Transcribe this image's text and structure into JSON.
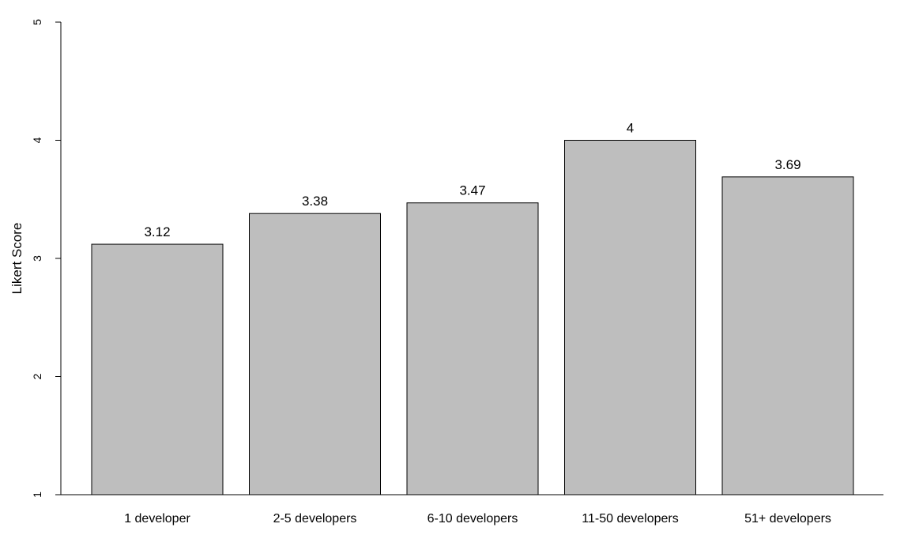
{
  "chart_data": {
    "type": "bar",
    "categories": [
      "1 developer",
      "2-5 developers",
      "6-10 developers",
      "11-50 developers",
      "51+ developers"
    ],
    "values": [
      3.12,
      3.38,
      3.47,
      4,
      3.69
    ],
    "value_labels": [
      "3.12",
      "3.38",
      "3.47",
      "4",
      "3.69"
    ],
    "title": "",
    "xlabel": "",
    "ylabel": "Likert Score",
    "ylim": [
      1,
      5
    ],
    "yticks": [
      1,
      2,
      3,
      4,
      5
    ],
    "ytick_labels": [
      "1",
      "2",
      "3",
      "4",
      "5"
    ],
    "grid": false,
    "legend": "none",
    "bar_color": "#bebebe",
    "edge_color": "#000000"
  }
}
